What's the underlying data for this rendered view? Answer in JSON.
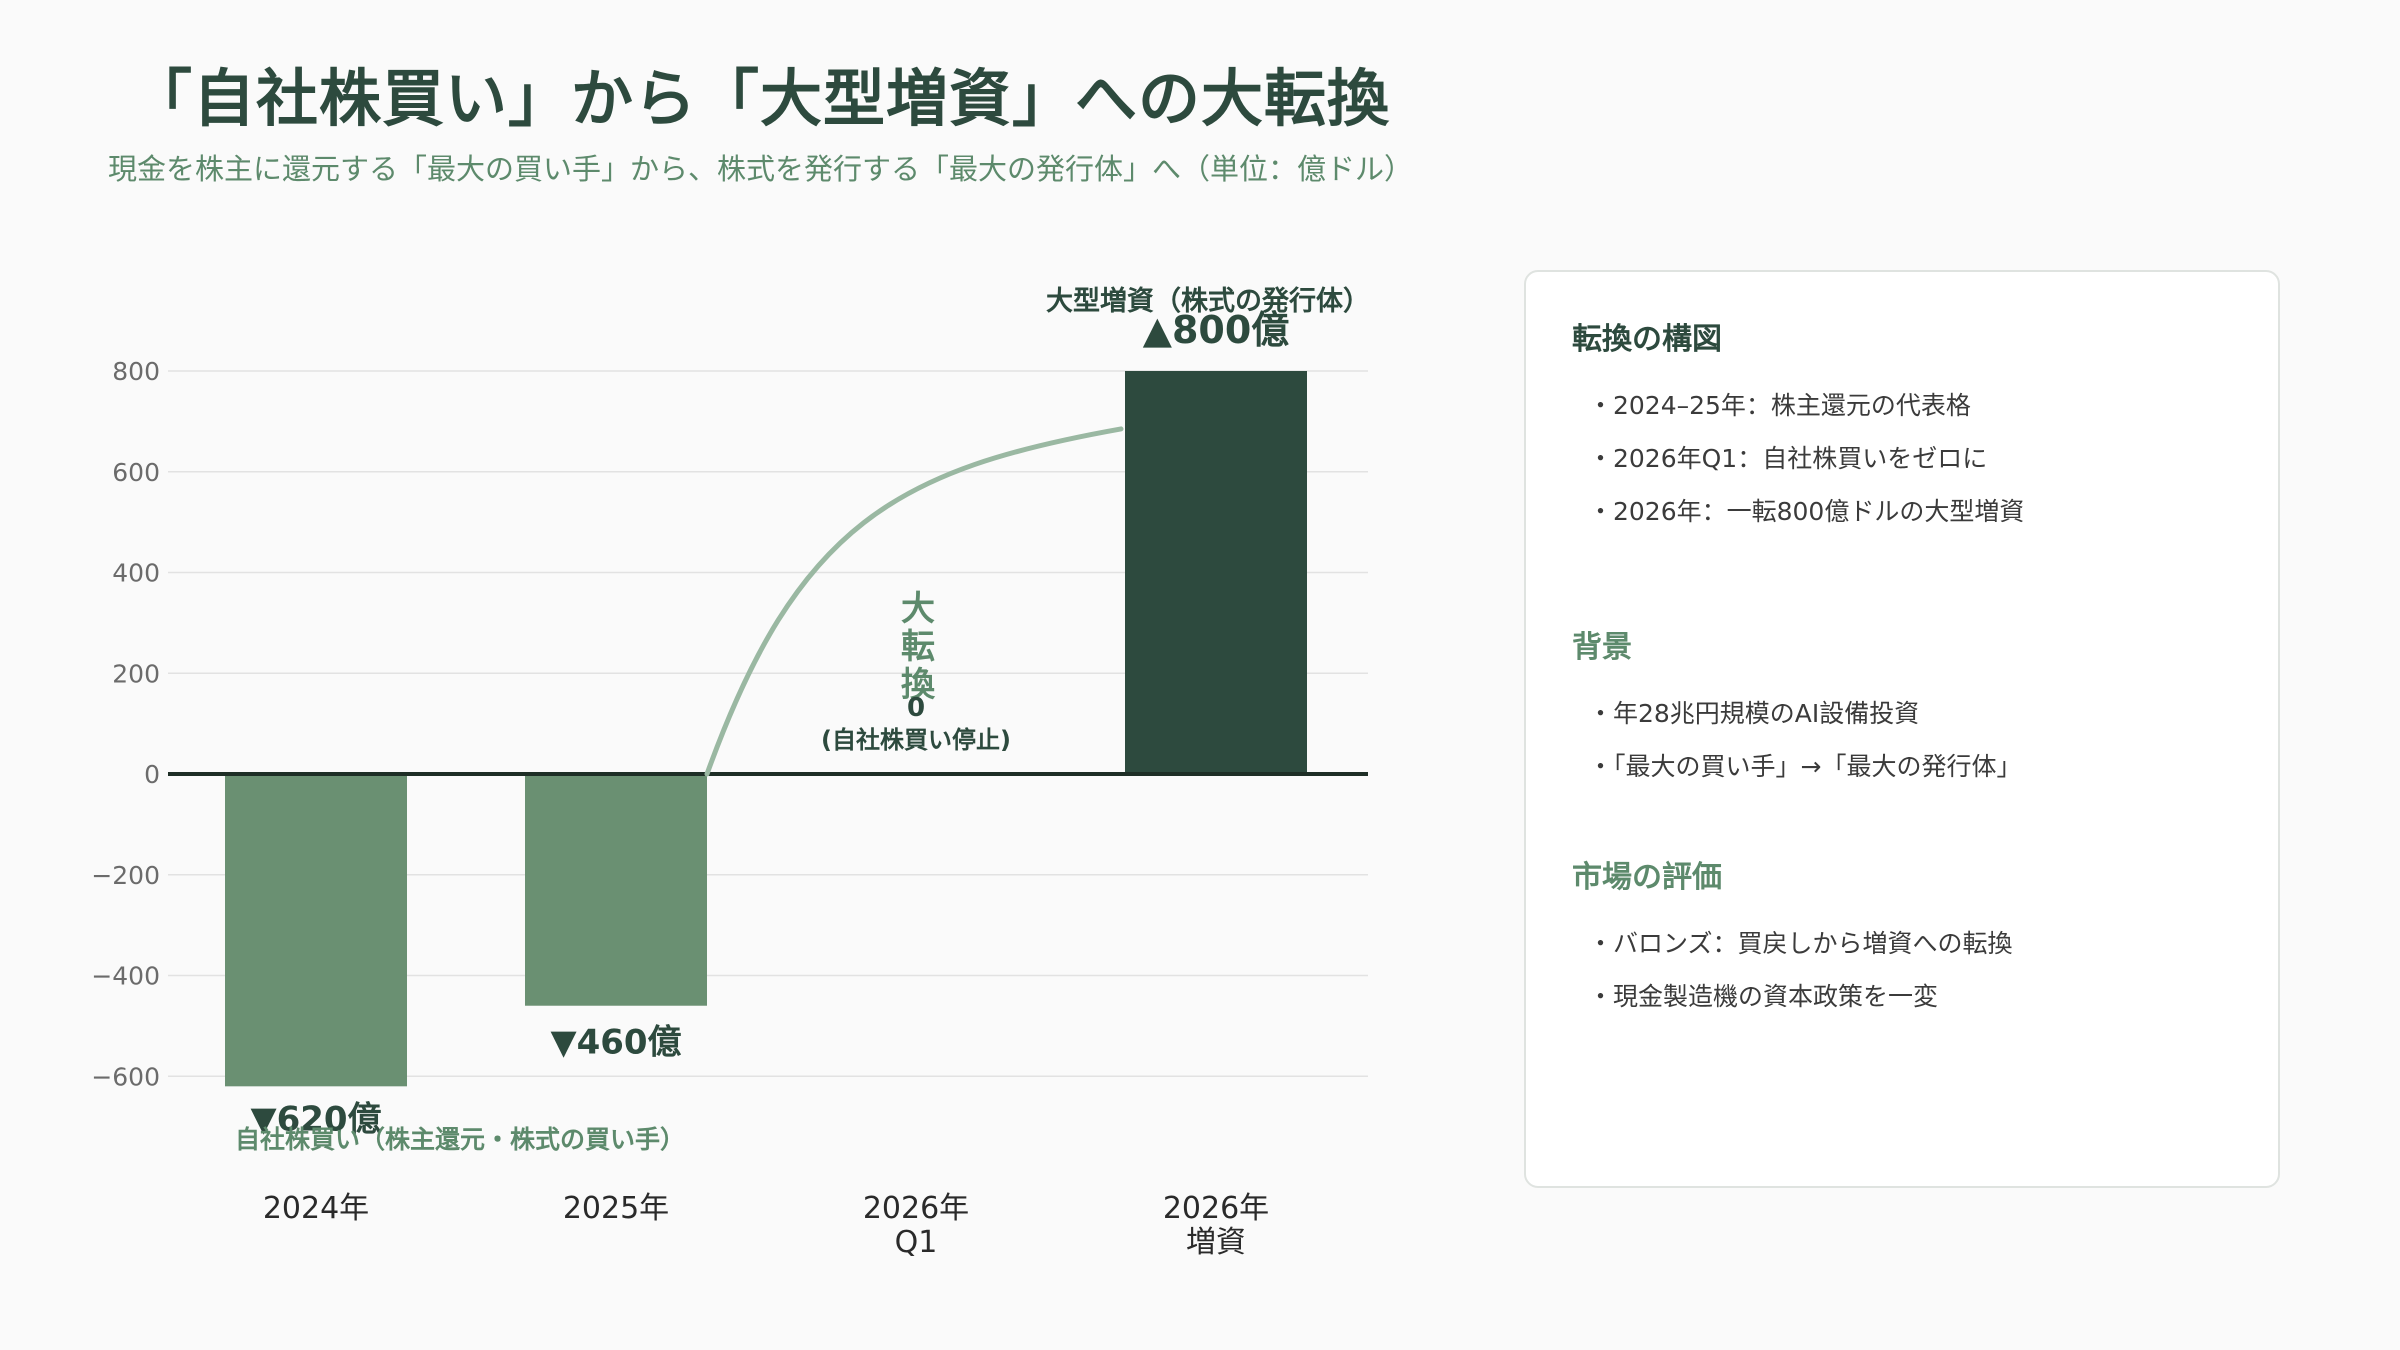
{
  "header": {
    "title": "「自社株買い」から「大型増資」への大転換",
    "subtitle": "現金を株主に還元する「最大の買い手」から、株式を発行する「最大の発行体」へ（単位：億ドル）"
  },
  "chart_data": {
    "type": "bar",
    "categories": [
      [
        "2024年"
      ],
      [
        "2025年"
      ],
      [
        "2026年",
        "Q1"
      ],
      [
        "2026年",
        "増資"
      ]
    ],
    "values": [
      -620,
      -460,
      0,
      800
    ],
    "ylim": [
      -700,
      850
    ],
    "yticks": [
      800,
      600,
      400,
      200,
      0,
      -200,
      -400,
      -600
    ],
    "ytick_labels": [
      "800",
      "600",
      "400",
      "200",
      "0",
      "−200",
      "−400",
      "−600"
    ],
    "bar_colors": [
      "#6a9072",
      "#6a9072",
      "#6a9072",
      "#2d4a3e"
    ],
    "data_labels": [
      "▼620億",
      "▼460億",
      "0",
      "▲800億"
    ],
    "annotations": {
      "buyback_caption": "自社株買い（株主還元・株式の買い手）",
      "zero_caption": "(自社株買い停止)",
      "issuance_caption": "大型増資（株式の発行体）",
      "transition_chars": [
        "大",
        "転",
        "換"
      ]
    },
    "grid": true,
    "colors": {
      "axis_text": "#6b6b6b",
      "grid": "#e2e2e2",
      "zero_line": "#1e2e26",
      "arrow": "#9ab8a2",
      "label_dark": "#2d4a3e",
      "label_green": "#5d8a6c"
    }
  },
  "panel": {
    "section1": {
      "heading": "転換の構図",
      "items": [
        "・2024–25年：株主還元の代表格",
        "・2026年Q1：自社株買いをゼロに",
        "・2026年：一転800億ドルの大型増資"
      ]
    },
    "section2": {
      "heading": "背景",
      "items": [
        "・年28兆円規模のAI設備投資",
        "・「最大の買い手」→「最大の発行体」"
      ]
    },
    "section3": {
      "heading": "市場の評価",
      "items": [
        "・バロンズ：買戻しから増資への転換",
        "・現金製造機の資本政策を一変"
      ]
    }
  }
}
